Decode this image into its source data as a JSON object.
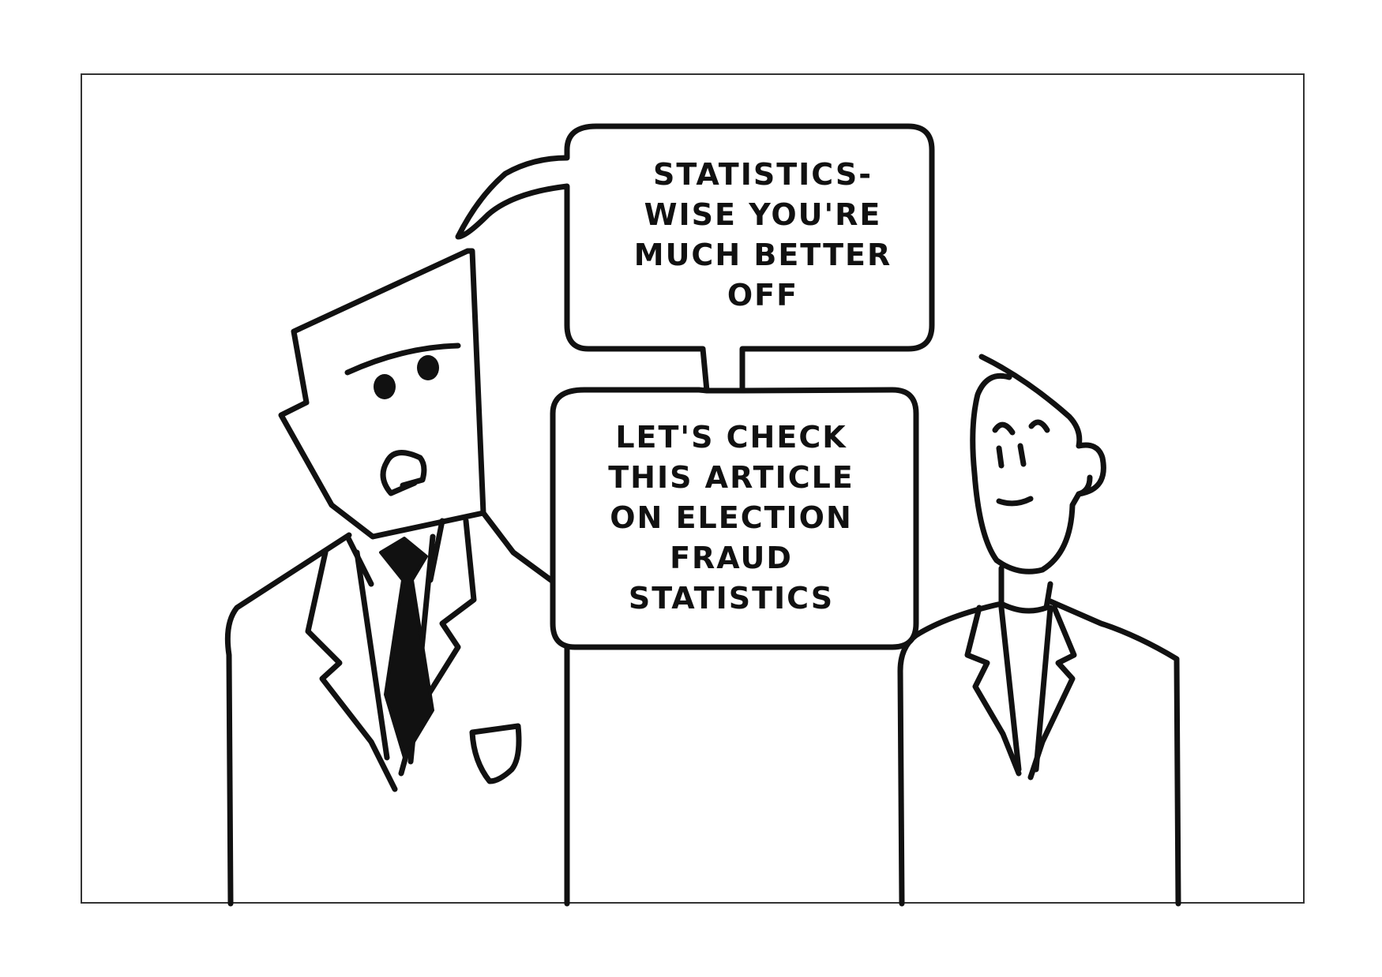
{
  "comic": {
    "speech_bubble_top": {
      "lines": [
        "STATISTICS-",
        "WISE YOU'RE",
        "MUCH BETTER",
        "OFF"
      ]
    },
    "speech_bubble_bottom": {
      "lines": [
        "LET'S CHECK",
        "THIS ARTICLE",
        "ON ELECTION",
        "FRAUD",
        "STATISTICS"
      ]
    }
  },
  "colors": {
    "ink": "#111111",
    "background": "#ffffff",
    "frame": "#333333"
  }
}
